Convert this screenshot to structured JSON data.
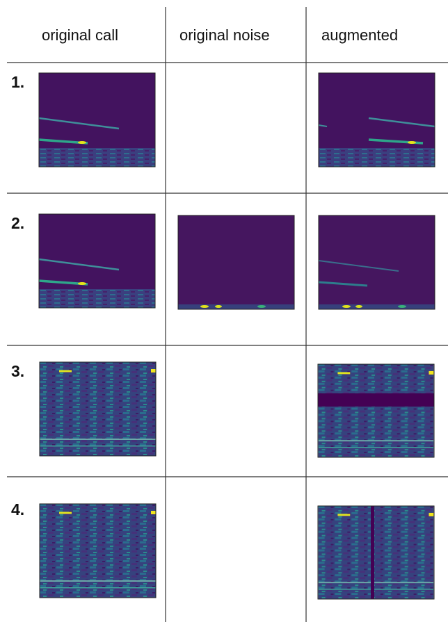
{
  "header": {
    "columns": [
      "original call",
      "original noise",
      "augmented"
    ]
  },
  "rows": [
    {
      "label": "1."
    },
    {
      "label": "2."
    },
    {
      "label": "3."
    },
    {
      "label": "4."
    }
  ]
}
